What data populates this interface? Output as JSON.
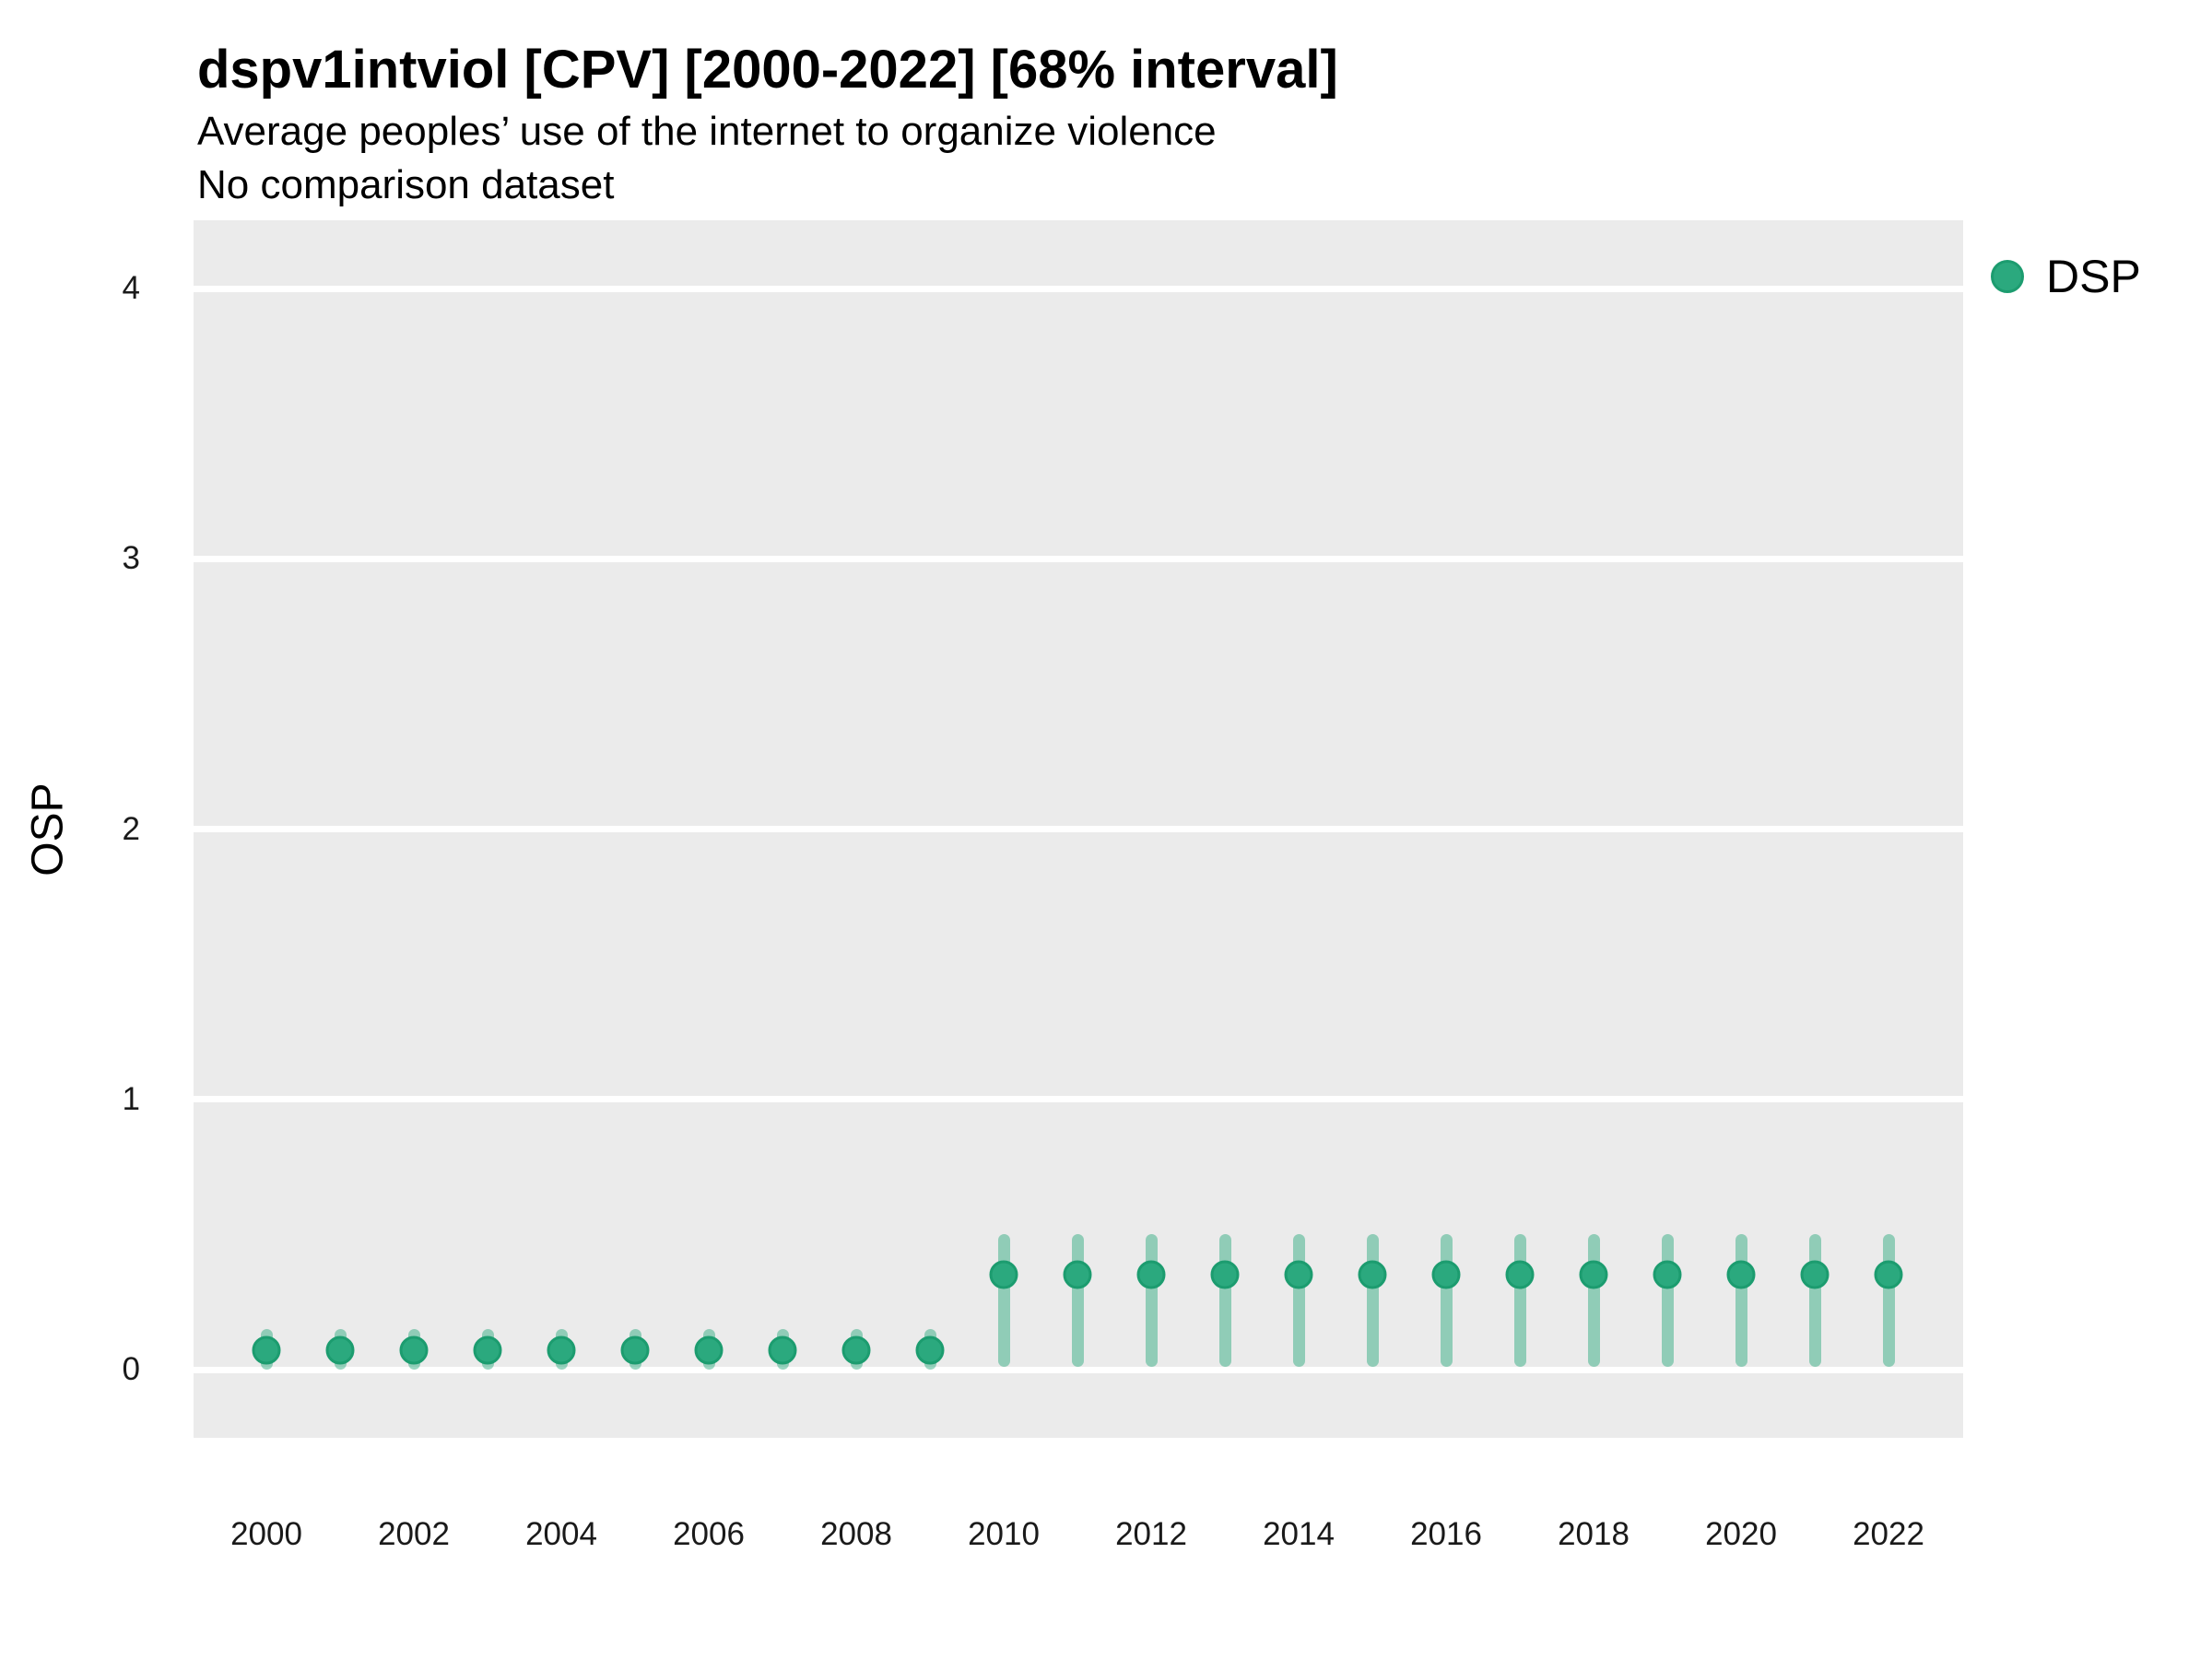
{
  "title": "dspv1intviol [CPV] [2000-2022] [68% interval]",
  "subtitle_line1": "Average peoples’ use of the internet to organize violence",
  "subtitle_line2": "No comparison dataset",
  "y_axis": {
    "label": "OSP",
    "ticks": [
      0,
      1,
      2,
      3,
      4
    ]
  },
  "x_axis": {
    "ticks": [
      2000,
      2002,
      2004,
      2006,
      2008,
      2010,
      2012,
      2014,
      2016,
      2018,
      2020,
      2022
    ]
  },
  "legend": {
    "label": "DSP",
    "position": "right-top"
  },
  "colors": {
    "panel_background": "#EBEBEB",
    "gridline": "#FFFFFF",
    "point_fill": "#2BA97E",
    "point_ring": "#1C9C6F",
    "interval_bar": "rgba(43,169,126,0.48)",
    "text": "#000000",
    "tick_text": "#1A1A1A"
  },
  "chart_data": {
    "type": "scatter",
    "title": "dspv1intviol [CPV] [2000-2022] [68% interval]",
    "subtitle": [
      "Average peoples’ use of the internet to organize violence",
      "No comparison dataset"
    ],
    "xlabel": "",
    "ylabel": "OSP",
    "ylim": [
      0,
      4
    ],
    "xlim": [
      2000,
      2022
    ],
    "y_ticks": [
      0,
      1,
      2,
      3,
      4
    ],
    "x_ticks": [
      2000,
      2002,
      2004,
      2006,
      2008,
      2010,
      2012,
      2014,
      2016,
      2018,
      2020,
      2022
    ],
    "grid": "horizontal-major-only, white on gray panel",
    "legend_position": "right-top",
    "interval": "68%",
    "series": [
      {
        "name": "DSP",
        "color": "#2BA97E",
        "points": [
          {
            "x": 2000,
            "y": 0.07,
            "lo": 0.0,
            "hi": 0.15
          },
          {
            "x": 2001,
            "y": 0.07,
            "lo": 0.0,
            "hi": 0.15
          },
          {
            "x": 2002,
            "y": 0.07,
            "lo": 0.0,
            "hi": 0.15
          },
          {
            "x": 2003,
            "y": 0.07,
            "lo": 0.0,
            "hi": 0.15
          },
          {
            "x": 2004,
            "y": 0.07,
            "lo": 0.0,
            "hi": 0.15
          },
          {
            "x": 2005,
            "y": 0.07,
            "lo": 0.0,
            "hi": 0.15
          },
          {
            "x": 2006,
            "y": 0.07,
            "lo": 0.0,
            "hi": 0.15
          },
          {
            "x": 2007,
            "y": 0.07,
            "lo": 0.0,
            "hi": 0.15
          },
          {
            "x": 2008,
            "y": 0.07,
            "lo": 0.0,
            "hi": 0.15
          },
          {
            "x": 2009,
            "y": 0.07,
            "lo": 0.0,
            "hi": 0.15
          },
          {
            "x": 2010,
            "y": 0.35,
            "lo": 0.01,
            "hi": 0.5
          },
          {
            "x": 2011,
            "y": 0.35,
            "lo": 0.01,
            "hi": 0.5
          },
          {
            "x": 2012,
            "y": 0.35,
            "lo": 0.01,
            "hi": 0.5
          },
          {
            "x": 2013,
            "y": 0.35,
            "lo": 0.01,
            "hi": 0.5
          },
          {
            "x": 2014,
            "y": 0.35,
            "lo": 0.01,
            "hi": 0.5
          },
          {
            "x": 2015,
            "y": 0.35,
            "lo": 0.01,
            "hi": 0.5
          },
          {
            "x": 2016,
            "y": 0.35,
            "lo": 0.01,
            "hi": 0.5
          },
          {
            "x": 2017,
            "y": 0.35,
            "lo": 0.01,
            "hi": 0.5
          },
          {
            "x": 2018,
            "y": 0.35,
            "lo": 0.01,
            "hi": 0.5
          },
          {
            "x": 2019,
            "y": 0.35,
            "lo": 0.01,
            "hi": 0.5
          },
          {
            "x": 2020,
            "y": 0.35,
            "lo": 0.01,
            "hi": 0.5
          },
          {
            "x": 2021,
            "y": 0.35,
            "lo": 0.01,
            "hi": 0.5
          },
          {
            "x": 2022,
            "y": 0.35,
            "lo": 0.01,
            "hi": 0.5
          }
        ]
      }
    ]
  }
}
